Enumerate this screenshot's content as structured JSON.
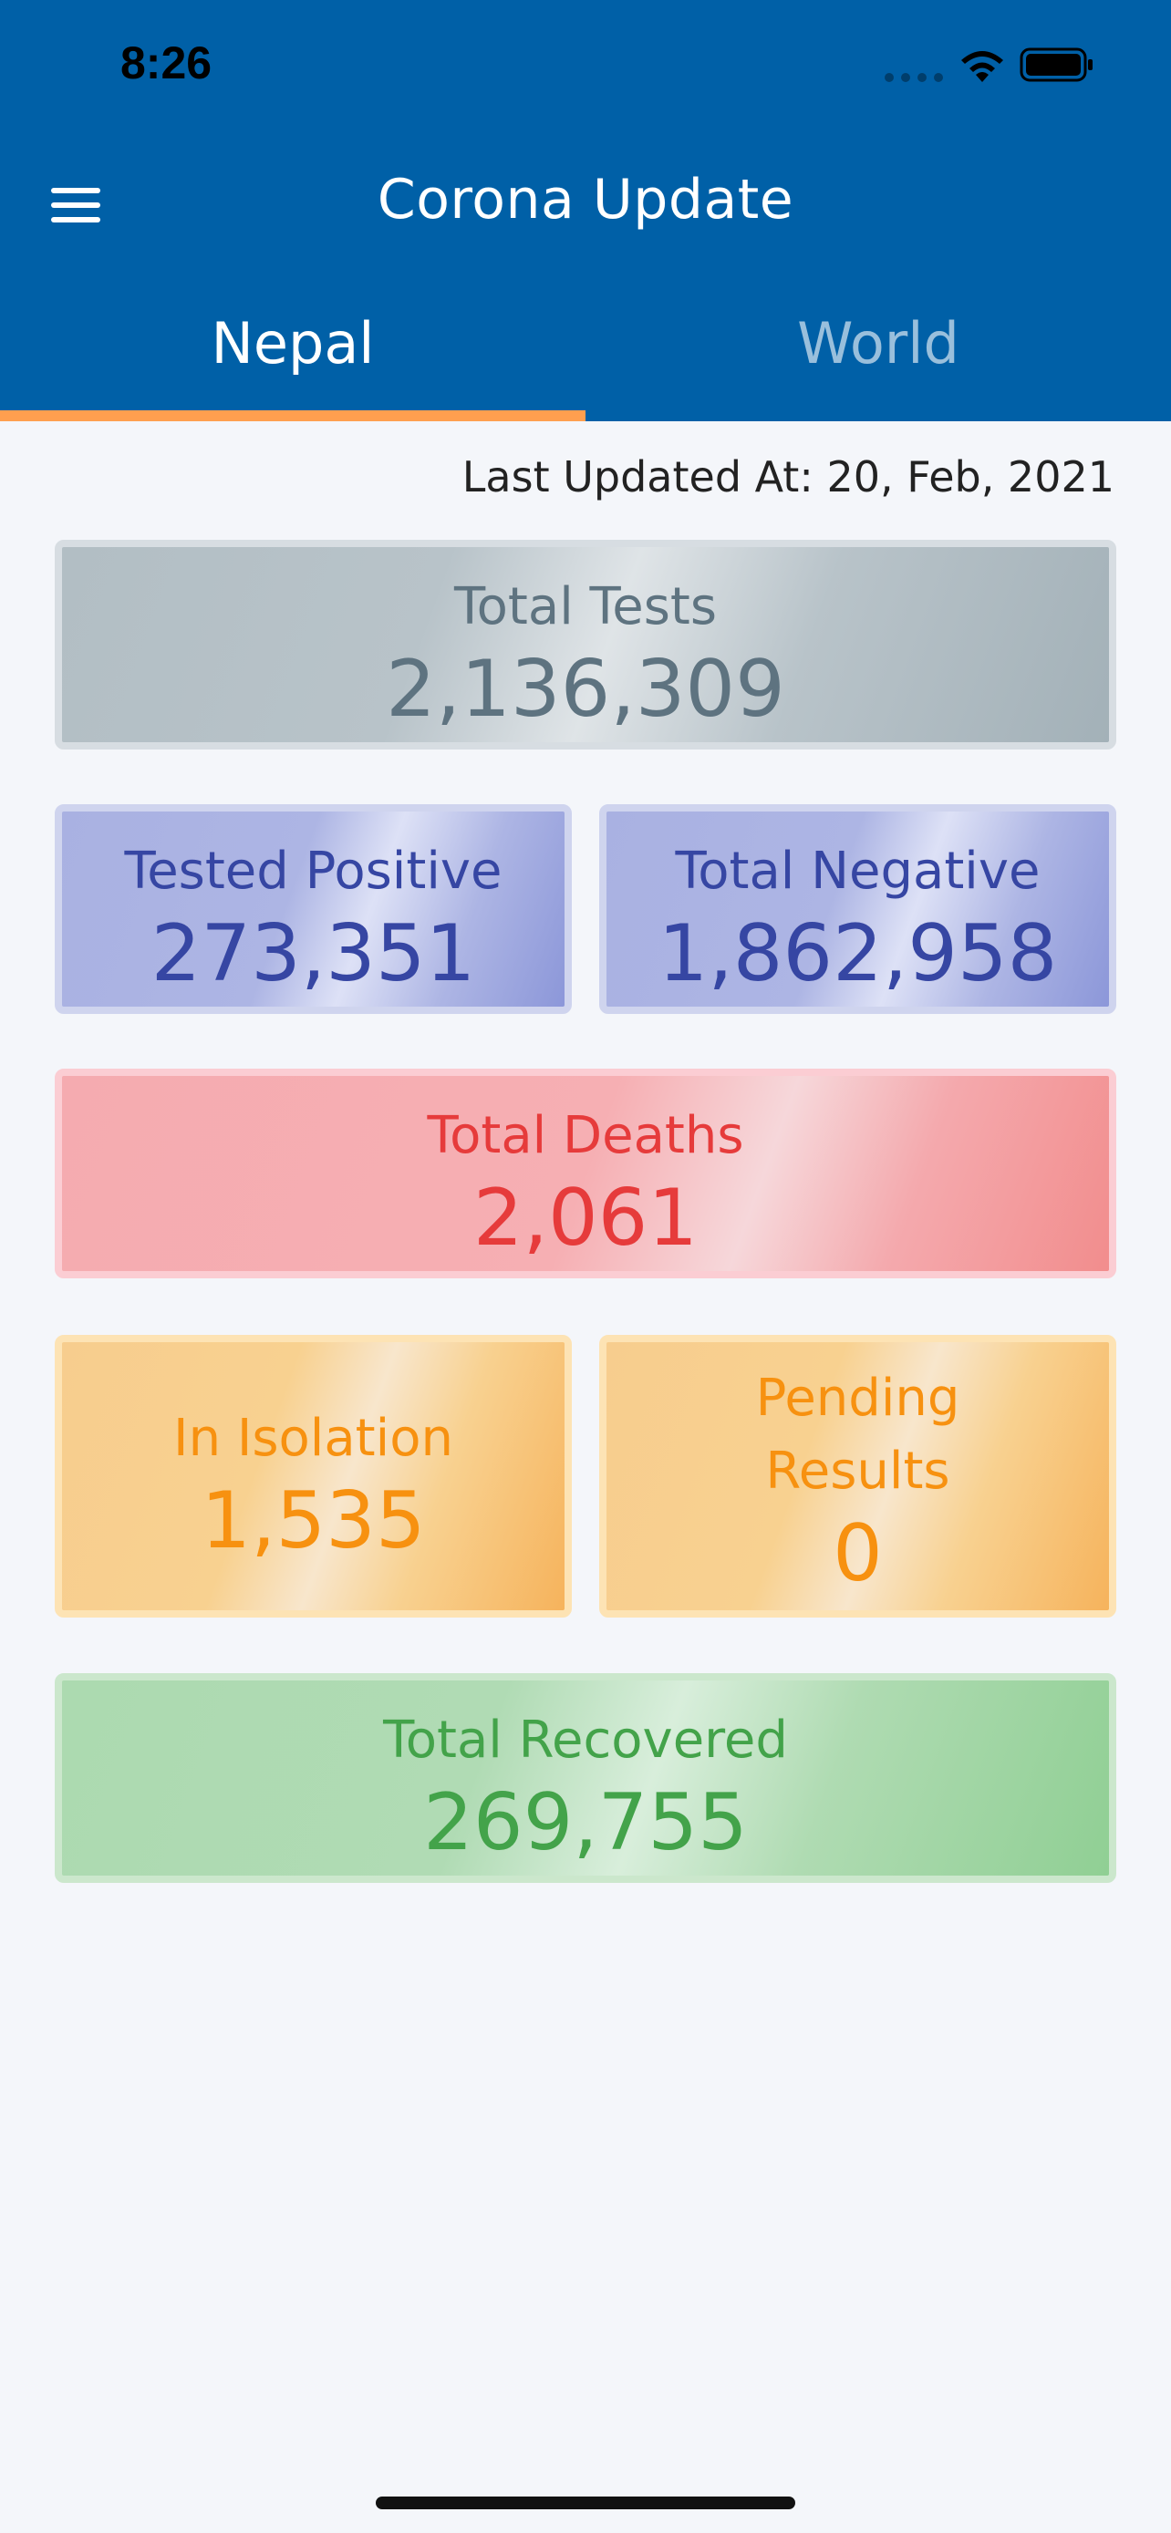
{
  "status_bar": {
    "time": "8:26"
  },
  "header": {
    "title": "Corona Update",
    "background_color": "#0060a7",
    "indicator_color": "#ff9f4f"
  },
  "tabs": [
    {
      "label": "Nepal",
      "active": true
    },
    {
      "label": "World",
      "active": false
    }
  ],
  "last_updated": "Last Updated At: 20, Feb, 2021",
  "stats": {
    "total_tests": {
      "label": "Total Tests",
      "value": "2,136,309",
      "color": "#5e7380"
    },
    "tested_positive": {
      "label": "Tested Positive",
      "value": "273,351",
      "color": "#3646a3"
    },
    "total_negative": {
      "label": "Total Negative",
      "value": "1,862,958",
      "color": "#3646a3"
    },
    "total_deaths": {
      "label": "Total Deaths",
      "value": "2,061",
      "color": "#e63b3b"
    },
    "in_isolation": {
      "label": "In Isolation",
      "value": "1,535",
      "color": "#f79110"
    },
    "pending_results": {
      "label_line1": "Pending",
      "label_line2": "Results",
      "value": "0",
      "color": "#f79110"
    },
    "total_recovered": {
      "label": "Total Recovered",
      "value": "269,755",
      "color": "#43a34a"
    }
  }
}
